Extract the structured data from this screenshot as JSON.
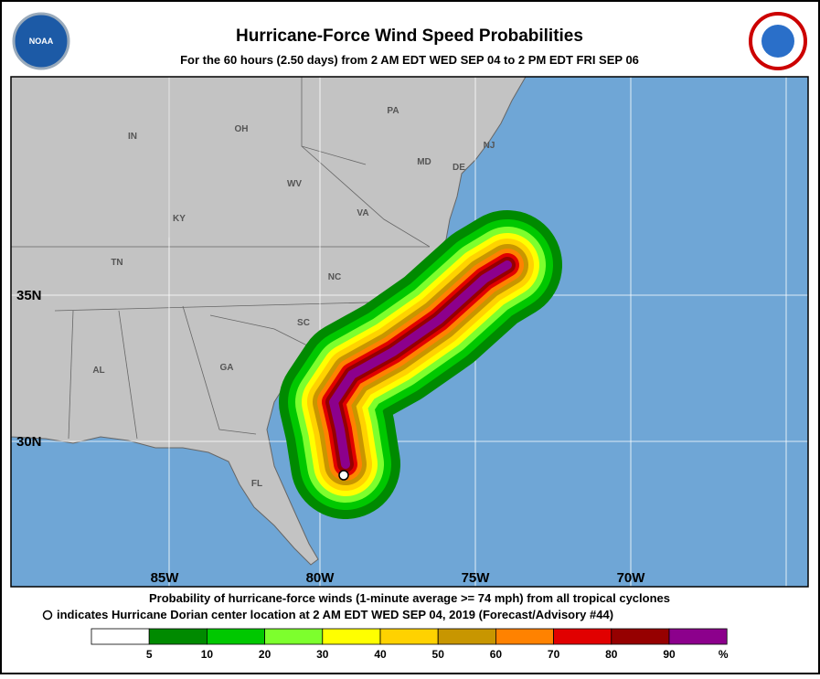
{
  "header": {
    "title": "Hurricane-Force Wind Speed Probabilities",
    "subtitle": "For the  60 hours (2.50 days) from 2 AM EDT WED SEP 04 to 2 PM EDT FRI SEP 06"
  },
  "map": {
    "states": [
      "IN",
      "OH",
      "PA",
      "NJ",
      "MD",
      "DE",
      "WV",
      "VA",
      "KY",
      "TN",
      "NC",
      "SC",
      "AL",
      "GA",
      "FL"
    ],
    "latitudes": [
      "35N",
      "30N"
    ],
    "longitudes": [
      "85W",
      "80W",
      "75W",
      "70W"
    ]
  },
  "caption": [
    "Probability of hurricane-force winds (1-minute average >= 74 mph) from all tropical cyclones",
    "indicates Hurricane Dorian center location at 2 AM EDT WED SEP 04, 2019 (Forecast/Advisory #44)"
  ],
  "legend": {
    "colors": [
      "#ffffff",
      "#008a00",
      "#00c800",
      "#7dff2d",
      "#ffff00",
      "#ffd200",
      "#c89600",
      "#ff8200",
      "#e10000",
      "#960000",
      "#8c008c"
    ],
    "labels": [
      "5",
      "10",
      "20",
      "30",
      "40",
      "50",
      "60",
      "70",
      "80",
      "90",
      "%"
    ]
  }
}
